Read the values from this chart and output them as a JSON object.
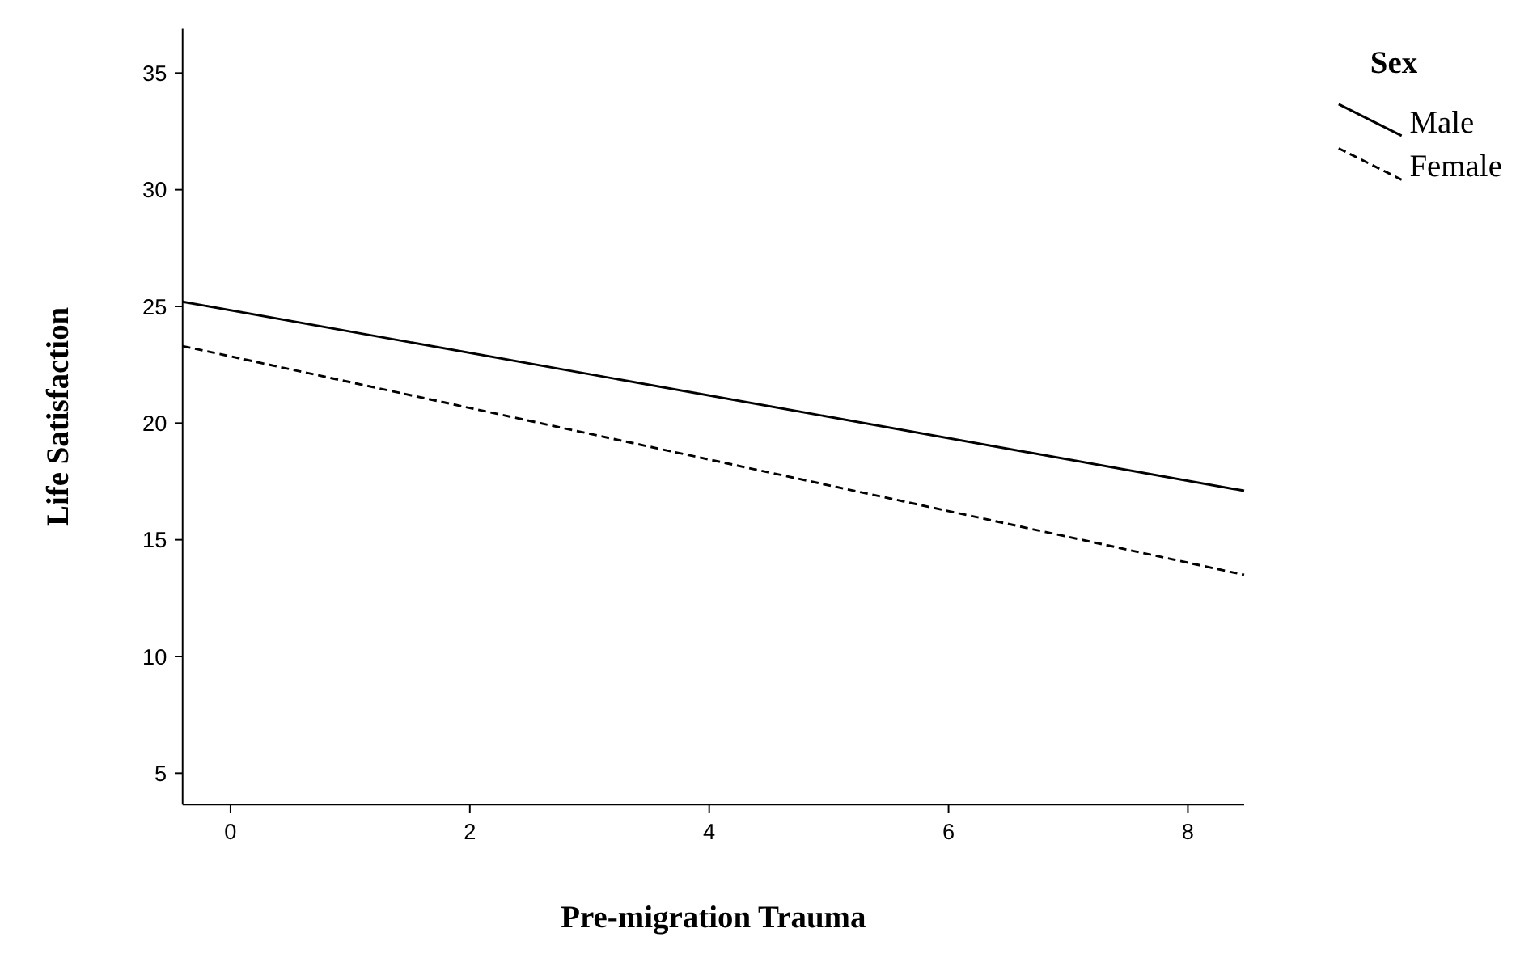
{
  "chart_data": {
    "type": "line",
    "xlabel": "Pre-migration Trauma",
    "ylabel": "Life Satisfaction",
    "legend_title": "Sex",
    "legend": "top right",
    "grid": false,
    "marker": "none",
    "xlim": [
      -0.4,
      8.47
    ],
    "ylim": [
      3.65,
      36.9
    ],
    "xticks": [
      0,
      2,
      4,
      6,
      8
    ],
    "yticks": [
      5,
      10,
      15,
      20,
      25,
      30,
      35
    ],
    "x": [
      -0.4,
      8.47
    ],
    "series": [
      {
        "name": "Male",
        "color": "#000000",
        "line_style": "solid",
        "values": [
          25.2,
          17.1
        ]
      },
      {
        "name": "Female",
        "color": "#000000",
        "line_style": "dashed",
        "values": [
          23.3,
          13.5
        ]
      }
    ]
  }
}
